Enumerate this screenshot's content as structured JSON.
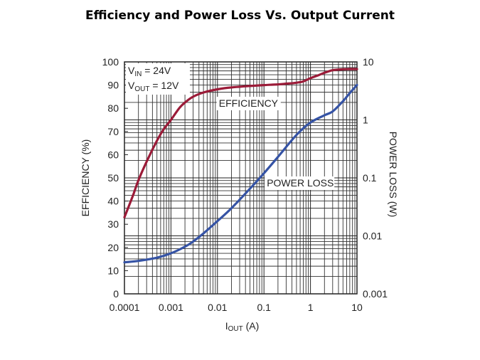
{
  "page": {
    "title": "Efficiency and Power Loss Vs. Output Current"
  },
  "chart_data": {
    "type": "line",
    "title": "Efficiency and Power Loss Vs. Output Current",
    "xscale": "log",
    "xlim": [
      0.0001,
      10
    ],
    "x_ticks": [
      0.0001,
      0.001,
      0.01,
      0.1,
      1,
      10
    ],
    "x_tick_labels": [
      "0.0001",
      "0.001",
      "0.01",
      "0.1",
      "1",
      "10"
    ],
    "xlabel": {
      "main": "I",
      "sub": "OUT",
      "unit": " (A)"
    },
    "y_left": {
      "label": "EFFICIENCY (%)",
      "lim": [
        0,
        100
      ],
      "ticks": [
        0,
        10,
        20,
        30,
        40,
        50,
        60,
        70,
        80,
        90,
        100
      ],
      "tick_labels": [
        "0",
        "10",
        "20",
        "30",
        "40",
        "50",
        "60",
        "70",
        "80",
        "90",
        "100"
      ]
    },
    "y_right": {
      "label": "POWER LOSS (W)",
      "scale": "log",
      "lim": [
        0.001,
        10
      ],
      "ticks": [
        0.001,
        0.01,
        0.1,
        1,
        10
      ],
      "tick_labels": [
        "0.001",
        "0.01",
        "0.1",
        "1",
        "10"
      ]
    },
    "conditions": [
      {
        "main": "V",
        "sub": "IN",
        "value": " = 24V"
      },
      {
        "main": "V",
        "sub": "OUT",
        "value": " = 12V"
      }
    ],
    "grid": true,
    "series": [
      {
        "name": "EFFICIENCY",
        "axis": "left",
        "color": "#9b1b38",
        "x": [
          0.0001,
          0.00015,
          0.0002,
          0.0003,
          0.0005,
          0.0007,
          0.001,
          0.0015,
          0.002,
          0.003,
          0.005,
          0.01,
          0.02,
          0.05,
          0.1,
          0.2,
          0.3,
          0.5,
          0.7,
          1,
          1.5,
          2,
          3,
          5,
          7,
          10
        ],
        "y": [
          33,
          42,
          49,
          57,
          66,
          71,
          75,
          80,
          82.5,
          85,
          86.8,
          88.2,
          89,
          89.6,
          90,
          90.3,
          90.6,
          91,
          91.6,
          93,
          94.3,
          95.3,
          96.4,
          96.8,
          96.9,
          96.9
        ]
      },
      {
        "name": "POWER LOSS",
        "axis": "right",
        "color": "#3553a5",
        "x": [
          0.0001,
          0.0002,
          0.0005,
          0.001,
          0.002,
          0.003,
          0.005,
          0.01,
          0.02,
          0.05,
          0.1,
          0.2,
          0.5,
          1,
          2,
          3,
          5,
          7,
          10
        ],
        "y": [
          0.0035,
          0.0037,
          0.0042,
          0.005,
          0.0065,
          0.008,
          0.011,
          0.018,
          0.03,
          0.065,
          0.12,
          0.23,
          0.55,
          0.9,
          1.2,
          1.4,
          2.1,
          2.9,
          4.0
        ]
      }
    ],
    "annotations": [
      {
        "text": "EFFICIENCY",
        "series": "EFFICIENCY"
      },
      {
        "text": "POWER LOSS",
        "series": "POWER LOSS"
      }
    ]
  }
}
